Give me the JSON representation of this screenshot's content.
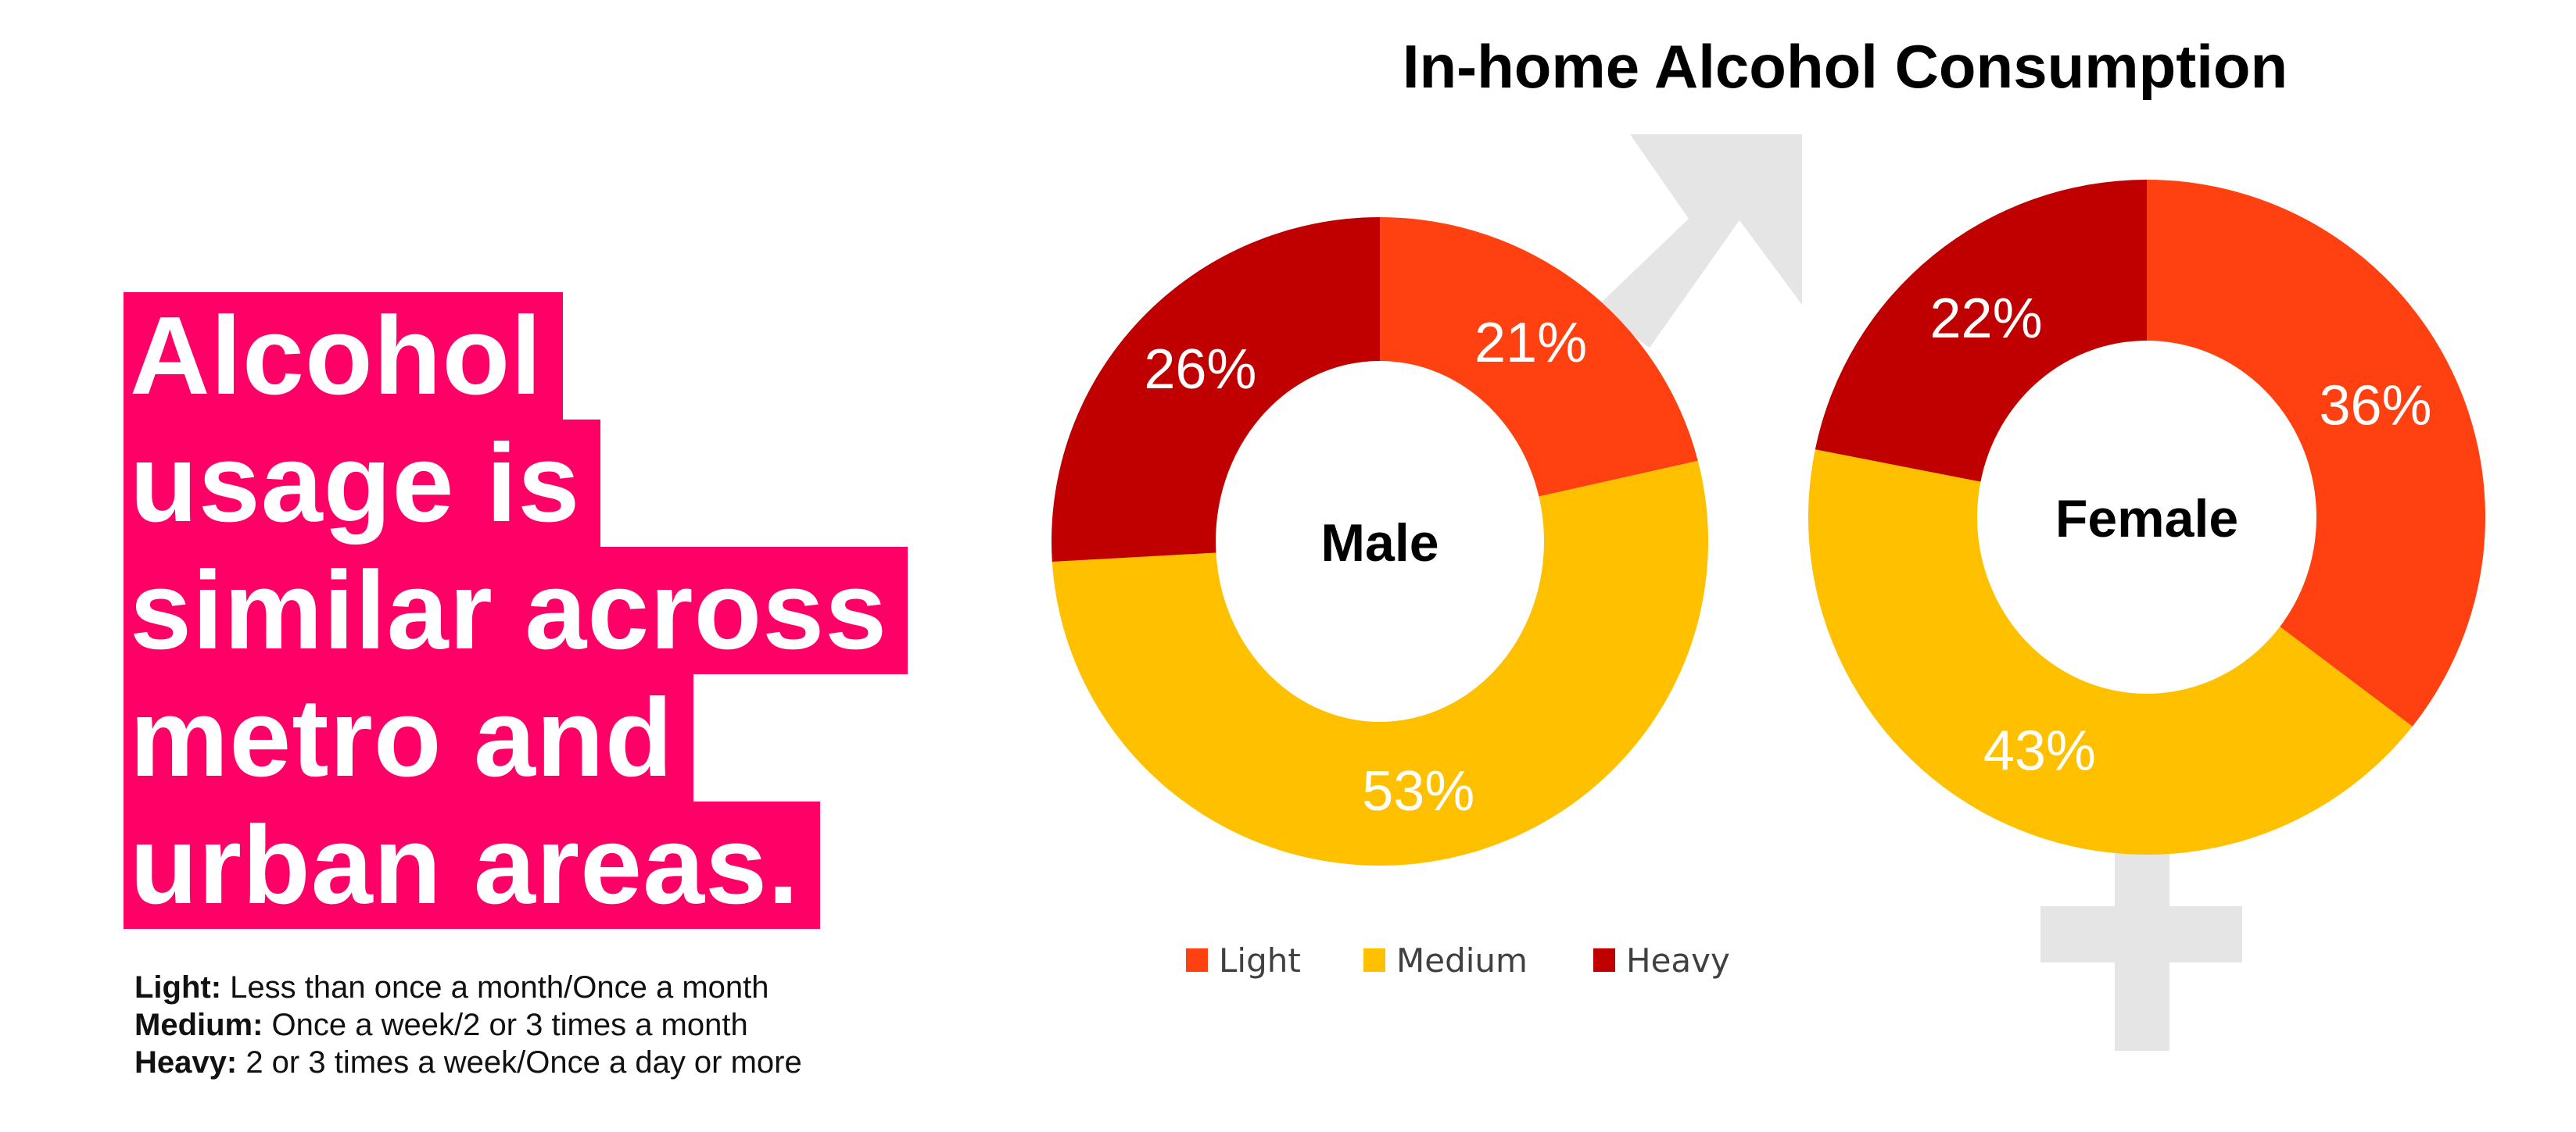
{
  "headline": [
    "Alcohol",
    "usage is",
    "similar across",
    "metro and",
    "urban areas."
  ],
  "definitions": [
    {
      "term": "Light:",
      "text": " Less than once a month/Once a month"
    },
    {
      "term": "Medium:",
      "text": " Once a week/2 or 3 times a month"
    },
    {
      "term": "Heavy:",
      "text": " 2 or 3 times a week/Once a day or more"
    }
  ],
  "colors": {
    "headline_bg": "#FF0066",
    "light": "#FF4010",
    "medium": "#FFC000",
    "heavy": "#C00000",
    "symbol": "#E6E5E6"
  },
  "chart_data": {
    "type": "pie",
    "title": "In-home Alcohol Consumption",
    "categories": [
      "Light",
      "Medium",
      "Heavy"
    ],
    "legend": {
      "placement": "bottom",
      "entries": [
        "Light",
        "Medium",
        "Heavy"
      ]
    },
    "series": [
      {
        "name": "Male",
        "values": [
          21,
          53,
          26
        ],
        "labels": [
          "21%",
          "53%",
          "26%"
        ]
      },
      {
        "name": "Female",
        "values": [
          36,
          43,
          22
        ],
        "labels": [
          "36%",
          "43%",
          "22%"
        ]
      }
    ],
    "donut": true
  }
}
